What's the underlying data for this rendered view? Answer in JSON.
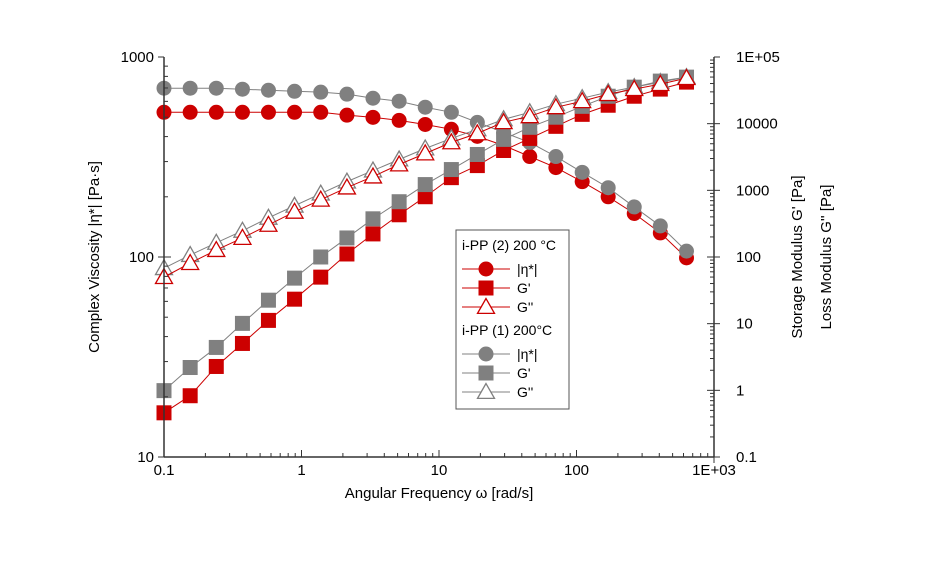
{
  "chart_data": {
    "type": "scatter",
    "xlabel": "Angular Frequency ω [rad/s]",
    "ylabel_left": "Complex Viscosity |η*| [Pa·s]",
    "ylabel_right": [
      "Storage Modulus G' [Pa]",
      "Loss Modulus G'' [Pa]"
    ],
    "x_scale": "log",
    "y_left_scale": "log",
    "y_right_scale": "log",
    "xlim": [
      0.1,
      1000
    ],
    "ylim_left": [
      10,
      1000
    ],
    "ylim_right": [
      0.1,
      100000
    ],
    "x_ticks": [
      "0.1",
      "1",
      "10",
      "100",
      "1E+03"
    ],
    "y_left_ticks": [
      "10",
      "100",
      "1000"
    ],
    "y_right_ticks": [
      "0.1",
      "1",
      "10",
      "100",
      "1000",
      "10000",
      "1E+05"
    ],
    "grid": false,
    "legend_placement": "center",
    "x": [
      0.1,
      0.155,
      0.24,
      0.372,
      0.575,
      0.89,
      1.38,
      2.14,
      3.31,
      5.13,
      7.94,
      12.3,
      19,
      29.5,
      45.7,
      70.8,
      110,
      170,
      263,
      407,
      631
    ],
    "groups": [
      {
        "name": "i-PP (2) 200 °C",
        "color": "#cc0000",
        "series": [
          {
            "name": "|η*|",
            "axis": "left",
            "marker": "circle",
            "values": [
              529,
              529,
              529,
              529,
              529,
              529,
              529,
              512,
              499,
              482,
              460,
              435,
              401,
              361,
              318,
              280,
              238,
              200,
              165,
              132,
              99
            ]
          },
          {
            "name": "G'",
            "axis": "right",
            "marker": "square",
            "values": [
              0.46,
              0.83,
              2.28,
              5.05,
              11.2,
              23.3,
              49.9,
              111,
              222,
              430,
              802,
              1550,
              2350,
              3960,
              6010,
              9120,
              13800,
              18900,
              25800,
              33000,
              42000
            ]
          },
          {
            "name": "G''",
            "axis": "right",
            "marker": "triangle-open",
            "values": [
              49.9,
              81,
              127,
              193,
              303,
              476,
              723,
              1100,
              1610,
              2440,
              3570,
              5240,
              7150,
              10500,
              12900,
              17600,
              21700,
              27700,
              33000,
              39200,
              48200
            ]
          }
        ]
      },
      {
        "name": "i-PP (1) 200°C",
        "color": "#808080",
        "series": [
          {
            "name": "|η*|",
            "axis": "left",
            "marker": "circle",
            "values": [
              698,
              698,
              698,
              690,
              682,
              674,
              667,
              652,
              622,
              601,
              561,
              529,
              471,
              420,
              374,
              318,
              265,
              222,
              178,
              143,
              107
            ]
          },
          {
            "name": "G'",
            "axis": "right",
            "marker": "square",
            "values": [
              0.99,
              2.2,
              4.4,
              10.1,
              22.5,
              48.2,
              100,
              193,
              374,
              675,
              1220,
              2050,
              3450,
              5810,
              8820,
              12500,
              18200,
              25800,
              35300,
              43500,
              49900
            ]
          },
          {
            "name": "G''",
            "axis": "right",
            "marker": "triangle-open",
            "values": [
              68,
              107,
              163,
              247,
              387,
              587,
              892,
              1350,
              1980,
              2900,
              4240,
              6010,
              8220,
              11600,
              14800,
              19600,
              24100,
              29700,
              35300,
              42000,
              49900
            ]
          }
        ]
      }
    ]
  }
}
